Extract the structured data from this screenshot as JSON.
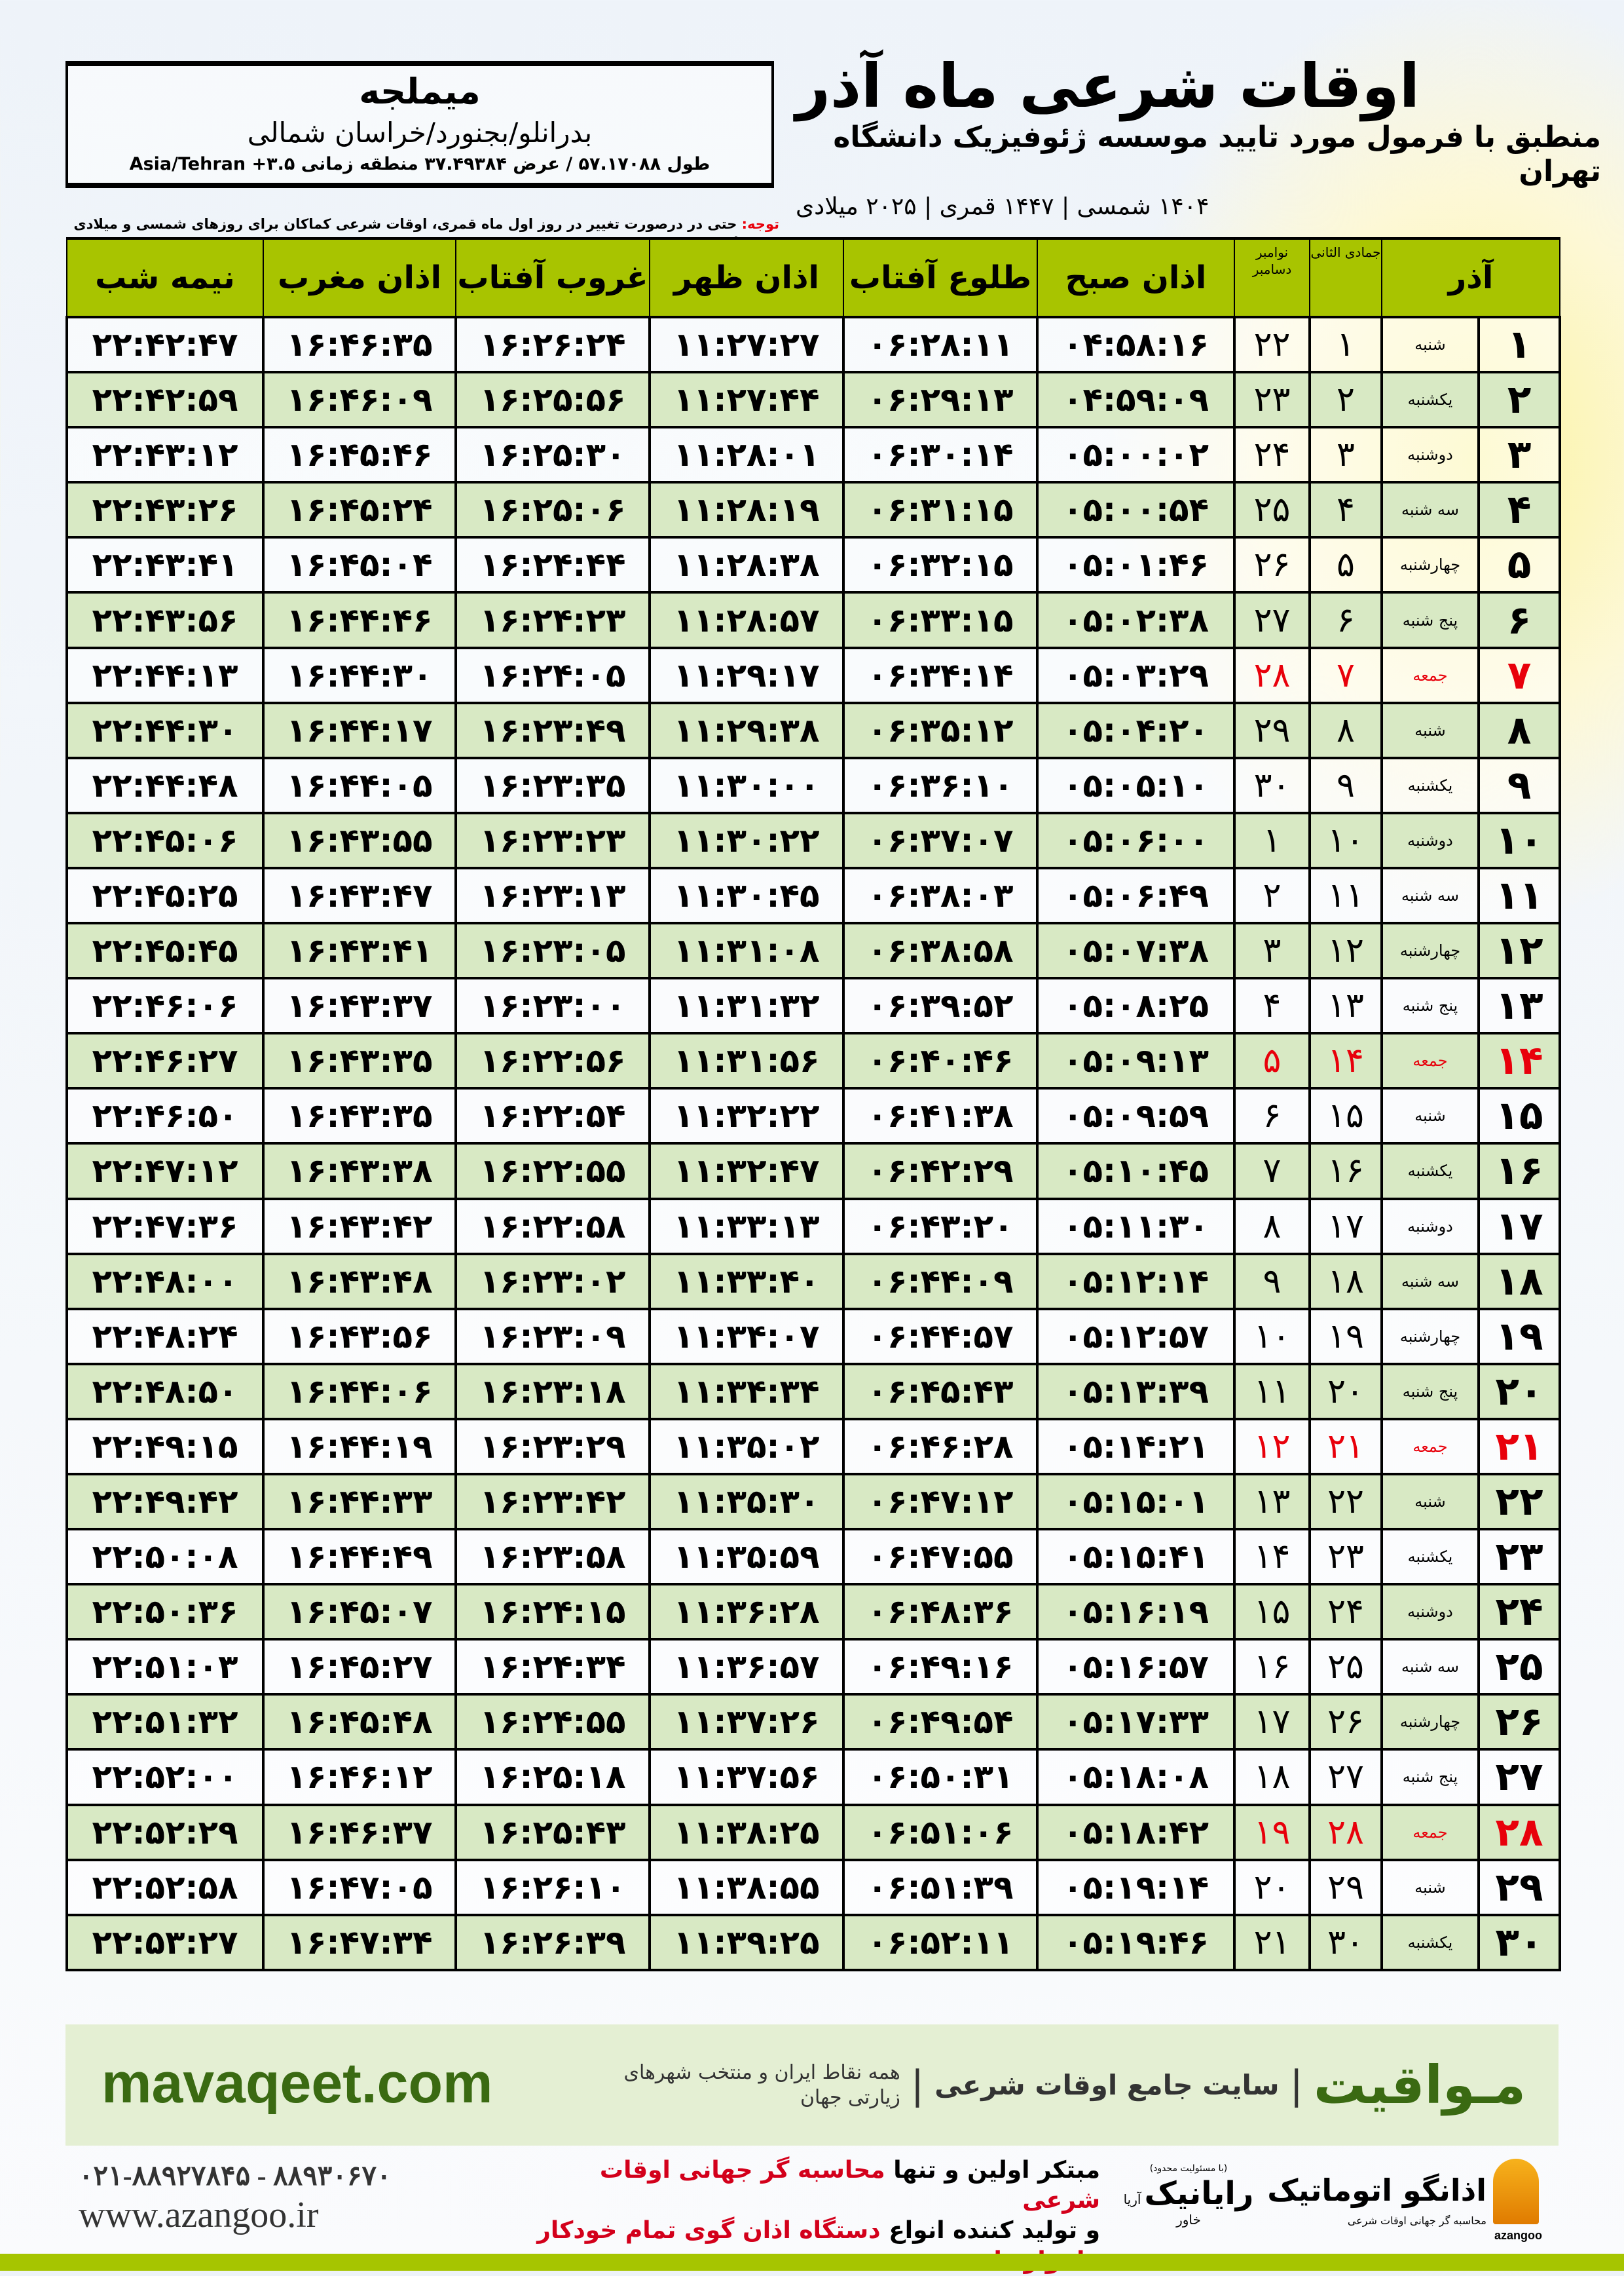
{
  "info": {
    "city": "میملجه",
    "region": "بدرانلو/بجنورد/خراسان شمالی",
    "coords": "طول ۵۷.۱۷۰۸۸ / عرض ۳۷.۴۹۳۸۴ منطقه زمانی ۳.۵+ Asia/Tehran"
  },
  "header": {
    "title": "اوقات شرعی ماه آذر",
    "subtitle": "منطبق با فرمول مورد تایید موسسه ژئوفیزیک دانشگاه تهران",
    "dates": "۱۴۰۴ شمسی | ۱۴۴۷ قمری | ۲۰۲۵ میلادی"
  },
  "note": {
    "label": "توجه:",
    "text": " حتی در درصورت تغییر در روز اول ماه قمری، اوقات شرعی کماکان برای روزهای شمسی و میلادی معتبر است."
  },
  "columns": {
    "day": "آذر",
    "hijri": "جمادی الثانی",
    "greg": "نوامبر دسامبر",
    "fajr": "اذان صبح",
    "sunrise": "طلوع آفتاب",
    "dhuhr": "اذان ظهر",
    "sunset": "غروب آفتاب",
    "maghrib": "اذان مغرب",
    "midnight": "نیمه شب"
  },
  "colors": {
    "header_green": "#a8c400",
    "row_green": "#d8e9c4",
    "friday_red": "#e8000b",
    "brand_green": "#3a6a12"
  },
  "rows": [
    [
      "۱",
      "شنبه",
      "۱",
      "۲۲",
      "۰۴:۵۸:۱۶",
      "۰۶:۲۸:۱۱",
      "۱۱:۲۷:۲۷",
      "۱۶:۲۶:۲۴",
      "۱۶:۴۶:۳۵",
      "۲۲:۴۲:۴۷"
    ],
    [
      "۲",
      "یکشنبه",
      "۲",
      "۲۳",
      "۰۴:۵۹:۰۹",
      "۰۶:۲۹:۱۳",
      "۱۱:۲۷:۴۴",
      "۱۶:۲۵:۵۶",
      "۱۶:۴۶:۰۹",
      "۲۲:۴۲:۵۹"
    ],
    [
      "۳",
      "دوشنبه",
      "۳",
      "۲۴",
      "۰۵:۰۰:۰۲",
      "۰۶:۳۰:۱۴",
      "۱۱:۲۸:۰۱",
      "۱۶:۲۵:۳۰",
      "۱۶:۴۵:۴۶",
      "۲۲:۴۳:۱۲"
    ],
    [
      "۴",
      "سه شنبه",
      "۴",
      "۲۵",
      "۰۵:۰۰:۵۴",
      "۰۶:۳۱:۱۵",
      "۱۱:۲۸:۱۹",
      "۱۶:۲۵:۰۶",
      "۱۶:۴۵:۲۴",
      "۲۲:۴۳:۲۶"
    ],
    [
      "۵",
      "چهارشنبه",
      "۵",
      "۲۶",
      "۰۵:۰۱:۴۶",
      "۰۶:۳۲:۱۵",
      "۱۱:۲۸:۳۸",
      "۱۶:۲۴:۴۴",
      "۱۶:۴۵:۰۴",
      "۲۲:۴۳:۴۱"
    ],
    [
      "۶",
      "پنج شنبه",
      "۶",
      "۲۷",
      "۰۵:۰۲:۳۸",
      "۰۶:۳۳:۱۵",
      "۱۱:۲۸:۵۷",
      "۱۶:۲۴:۲۳",
      "۱۶:۴۴:۴۶",
      "۲۲:۴۳:۵۶"
    ],
    [
      "۷",
      "جمعه",
      "۷",
      "۲۸",
      "۰۵:۰۳:۲۹",
      "۰۶:۳۴:۱۴",
      "۱۱:۲۹:۱۷",
      "۱۶:۲۴:۰۵",
      "۱۶:۴۴:۳۰",
      "۲۲:۴۴:۱۳"
    ],
    [
      "۸",
      "شنبه",
      "۸",
      "۲۹",
      "۰۵:۰۴:۲۰",
      "۰۶:۳۵:۱۲",
      "۱۱:۲۹:۳۸",
      "۱۶:۲۳:۴۹",
      "۱۶:۴۴:۱۷",
      "۲۲:۴۴:۳۰"
    ],
    [
      "۹",
      "یکشنبه",
      "۹",
      "۳۰",
      "۰۵:۰۵:۱۰",
      "۰۶:۳۶:۱۰",
      "۱۱:۳۰:۰۰",
      "۱۶:۲۳:۳۵",
      "۱۶:۴۴:۰۵",
      "۲۲:۴۴:۴۸"
    ],
    [
      "۱۰",
      "دوشنبه",
      "۱۰",
      "۱",
      "۰۵:۰۶:۰۰",
      "۰۶:۳۷:۰۷",
      "۱۱:۳۰:۲۲",
      "۱۶:۲۳:۲۳",
      "۱۶:۴۳:۵۵",
      "۲۲:۴۵:۰۶"
    ],
    [
      "۱۱",
      "سه شنبه",
      "۱۱",
      "۲",
      "۰۵:۰۶:۴۹",
      "۰۶:۳۸:۰۳",
      "۱۱:۳۰:۴۵",
      "۱۶:۲۳:۱۳",
      "۱۶:۴۳:۴۷",
      "۲۲:۴۵:۲۵"
    ],
    [
      "۱۲",
      "چهارشنبه",
      "۱۲",
      "۳",
      "۰۵:۰۷:۳۸",
      "۰۶:۳۸:۵۸",
      "۱۱:۳۱:۰۸",
      "۱۶:۲۳:۰۵",
      "۱۶:۴۳:۴۱",
      "۲۲:۴۵:۴۵"
    ],
    [
      "۱۳",
      "پنج شنبه",
      "۱۳",
      "۴",
      "۰۵:۰۸:۲۵",
      "۰۶:۳۹:۵۲",
      "۱۱:۳۱:۳۲",
      "۱۶:۲۳:۰۰",
      "۱۶:۴۳:۳۷",
      "۲۲:۴۶:۰۶"
    ],
    [
      "۱۴",
      "جمعه",
      "۱۴",
      "۵",
      "۰۵:۰۹:۱۳",
      "۰۶:۴۰:۴۶",
      "۱۱:۳۱:۵۶",
      "۱۶:۲۲:۵۶",
      "۱۶:۴۳:۳۵",
      "۲۲:۴۶:۲۷"
    ],
    [
      "۱۵",
      "شنبه",
      "۱۵",
      "۶",
      "۰۵:۰۹:۵۹",
      "۰۶:۴۱:۳۸",
      "۱۱:۳۲:۲۲",
      "۱۶:۲۲:۵۴",
      "۱۶:۴۳:۳۵",
      "۲۲:۴۶:۵۰"
    ],
    [
      "۱۶",
      "یکشنبه",
      "۱۶",
      "۷",
      "۰۵:۱۰:۴۵",
      "۰۶:۴۲:۲۹",
      "۱۱:۳۲:۴۷",
      "۱۶:۲۲:۵۵",
      "۱۶:۴۳:۳۸",
      "۲۲:۴۷:۱۲"
    ],
    [
      "۱۷",
      "دوشنبه",
      "۱۷",
      "۸",
      "۰۵:۱۱:۳۰",
      "۰۶:۴۳:۲۰",
      "۱۱:۳۳:۱۳",
      "۱۶:۲۲:۵۸",
      "۱۶:۴۳:۴۲",
      "۲۲:۴۷:۳۶"
    ],
    [
      "۱۸",
      "سه شنبه",
      "۱۸",
      "۹",
      "۰۵:۱۲:۱۴",
      "۰۶:۴۴:۰۹",
      "۱۱:۳۳:۴۰",
      "۱۶:۲۳:۰۲",
      "۱۶:۴۳:۴۸",
      "۲۲:۴۸:۰۰"
    ],
    [
      "۱۹",
      "چهارشنبه",
      "۱۹",
      "۱۰",
      "۰۵:۱۲:۵۷",
      "۰۶:۴۴:۵۷",
      "۱۱:۳۴:۰۷",
      "۱۶:۲۳:۰۹",
      "۱۶:۴۳:۵۶",
      "۲۲:۴۸:۲۴"
    ],
    [
      "۲۰",
      "پنج شنبه",
      "۲۰",
      "۱۱",
      "۰۵:۱۳:۳۹",
      "۰۶:۴۵:۴۳",
      "۱۱:۳۴:۳۴",
      "۱۶:۲۳:۱۸",
      "۱۶:۴۴:۰۶",
      "۲۲:۴۸:۵۰"
    ],
    [
      "۲۱",
      "جمعه",
      "۲۱",
      "۱۲",
      "۰۵:۱۴:۲۱",
      "۰۶:۴۶:۲۸",
      "۱۱:۳۵:۰۲",
      "۱۶:۲۳:۲۹",
      "۱۶:۴۴:۱۹",
      "۲۲:۴۹:۱۵"
    ],
    [
      "۲۲",
      "شنبه",
      "۲۲",
      "۱۳",
      "۰۵:۱۵:۰۱",
      "۰۶:۴۷:۱۲",
      "۱۱:۳۵:۳۰",
      "۱۶:۲۳:۴۲",
      "۱۶:۴۴:۳۳",
      "۲۲:۴۹:۴۲"
    ],
    [
      "۲۳",
      "یکشنبه",
      "۲۳",
      "۱۴",
      "۰۵:۱۵:۴۱",
      "۰۶:۴۷:۵۵",
      "۱۱:۳۵:۵۹",
      "۱۶:۲۳:۵۸",
      "۱۶:۴۴:۴۹",
      "۲۲:۵۰:۰۸"
    ],
    [
      "۲۴",
      "دوشنبه",
      "۲۴",
      "۱۵",
      "۰۵:۱۶:۱۹",
      "۰۶:۴۸:۳۶",
      "۱۱:۳۶:۲۸",
      "۱۶:۲۴:۱۵",
      "۱۶:۴۵:۰۷",
      "۲۲:۵۰:۳۶"
    ],
    [
      "۲۵",
      "سه شنبه",
      "۲۵",
      "۱۶",
      "۰۵:۱۶:۵۷",
      "۰۶:۴۹:۱۶",
      "۱۱:۳۶:۵۷",
      "۱۶:۲۴:۳۴",
      "۱۶:۴۵:۲۷",
      "۲۲:۵۱:۰۳"
    ],
    [
      "۲۶",
      "چهارشنبه",
      "۲۶",
      "۱۷",
      "۰۵:۱۷:۳۳",
      "۰۶:۴۹:۵۴",
      "۱۱:۳۷:۲۶",
      "۱۶:۲۴:۵۵",
      "۱۶:۴۵:۴۸",
      "۲۲:۵۱:۳۲"
    ],
    [
      "۲۷",
      "پنج شنبه",
      "۲۷",
      "۱۸",
      "۰۵:۱۸:۰۸",
      "۰۶:۵۰:۳۱",
      "۱۱:۳۷:۵۶",
      "۱۶:۲۵:۱۸",
      "۱۶:۴۶:۱۲",
      "۲۲:۵۲:۰۰"
    ],
    [
      "۲۸",
      "جمعه",
      "۲۸",
      "۱۹",
      "۰۵:۱۸:۴۲",
      "۰۶:۵۱:۰۶",
      "۱۱:۳۸:۲۵",
      "۱۶:۲۵:۴۳",
      "۱۶:۴۶:۳۷",
      "۲۲:۵۲:۲۹"
    ],
    [
      "۲۹",
      "شنبه",
      "۲۹",
      "۲۰",
      "۰۵:۱۹:۱۴",
      "۰۶:۵۱:۳۹",
      "۱۱:۳۸:۵۵",
      "۱۶:۲۶:۱۰",
      "۱۶:۴۷:۰۵",
      "۲۲:۵۲:۵۸"
    ],
    [
      "۳۰",
      "یکشنبه",
      "۳۰",
      "۲۱",
      "۰۵:۱۹:۴۶",
      "۰۶:۵۲:۱۱",
      "۱۱:۳۹:۲۵",
      "۱۶:۲۶:۳۹",
      "۱۶:۴۷:۳۴",
      "۲۲:۵۳:۲۷"
    ]
  ],
  "banner": {
    "site": "mavaqeet.com",
    "brand": "مـواقیت",
    "sep": "|",
    "slogan1": "سایت جامع اوقات شرعی",
    "slogan2": "همه نقاط ایران و منتخب شهرهای زیارتی جهان"
  },
  "footer": {
    "phone": "۰۲۱-۸۸۹۲۷۸۴۵ - ۸۸۹۳۰۶۷۰",
    "web": "www.azangoo.ir",
    "line1a": "مبتکر اولین و تنها ",
    "line1b": "محاسبه گر جهانی اوقات شرعی",
    "line2a": "و تولید کننده انواع ",
    "line2b": "دستگاه اذان گوی تمام خودکار ماهواره ای",
    "logo1_small": "(با مسئولیت محدود)",
    "logo1_name": "رایانیک",
    "logo1_sub": "آریا خاور",
    "logo2_name": "اذانگو اتوماتیک",
    "logo2_sub": "محاسبه گر جهانی اوقات شرعی",
    "logo2_latin": "azangoo"
  }
}
